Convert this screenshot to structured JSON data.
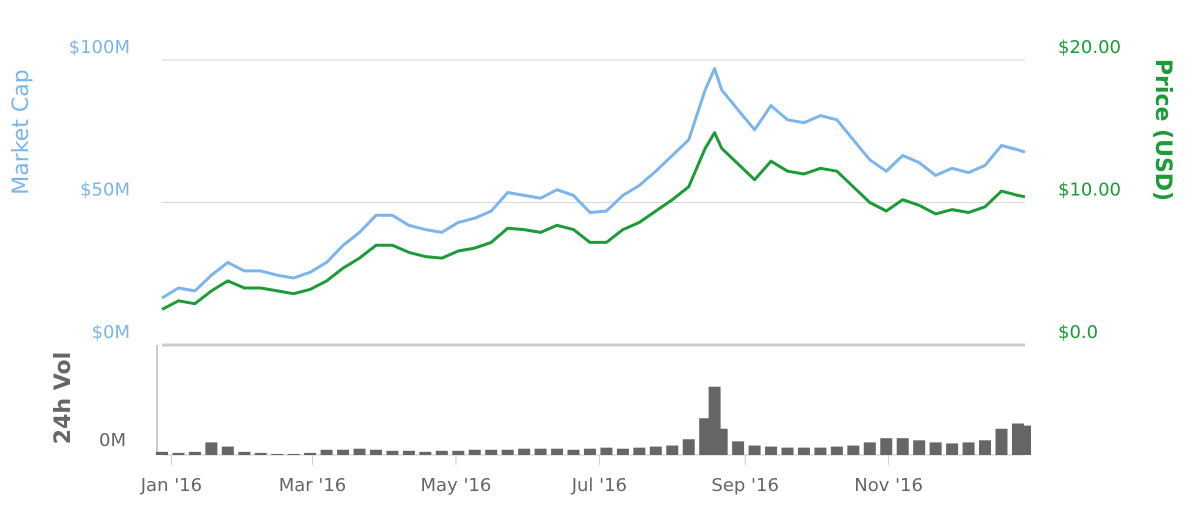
{
  "chart_data": {
    "type": "line",
    "x": [
      -4,
      3,
      10,
      17,
      24,
      31,
      38,
      45,
      52,
      59,
      66,
      73,
      80,
      87,
      94,
      101,
      108,
      115,
      122,
      129,
      136,
      143,
      150,
      157,
      164,
      171,
      178,
      185,
      192,
      199,
      206,
      213,
      220,
      227,
      231,
      234,
      241,
      248,
      255,
      262,
      269,
      276,
      283,
      290,
      297,
      304,
      311,
      318,
      325,
      332,
      339,
      346,
      353,
      360,
      363
    ],
    "xlim": [
      -4,
      363
    ],
    "xticks": [
      {
        "value": 0,
        "label": "Jan '16"
      },
      {
        "value": 60,
        "label": "Mar '16"
      },
      {
        "value": 121,
        "label": "May '16"
      },
      {
        "value": 182,
        "label": "Jul '16"
      },
      {
        "value": 244,
        "label": "Sep '16"
      },
      {
        "value": 305,
        "label": "Nov '16"
      }
    ],
    "ylabel": "Market Cap",
    "y2label": "Price (USD)",
    "y3label": "24h Vol",
    "ylim": [
      0,
      100
    ],
    "yticks": [
      {
        "value": 0,
        "label": "$0M"
      },
      {
        "value": 50,
        "label": "$50M"
      },
      {
        "value": 100,
        "label": "$100M"
      }
    ],
    "y2lim": [
      0,
      20
    ],
    "y2ticks": [
      {
        "value": 0,
        "label": "$0.0"
      },
      {
        "value": 10,
        "label": "$10.00"
      },
      {
        "value": 20,
        "label": "$20.00"
      }
    ],
    "y3lim": [
      0,
      10
    ],
    "y3ticks": [
      {
        "value": 0,
        "label": "0M"
      }
    ],
    "grid": true,
    "series": [
      {
        "name": "Market Cap",
        "color": "#7cb5ec",
        "values": [
          16.5,
          20,
          19,
          24.5,
          29,
          26,
          26,
          24.5,
          23.5,
          25.5,
          29,
          35,
          39.5,
          45.5,
          45.5,
          42,
          40.5,
          39.5,
          43,
          44.5,
          47,
          53.5,
          52.5,
          51.5,
          54.5,
          52.5,
          46.5,
          47,
          52.5,
          56,
          61,
          66.5,
          72,
          89.5,
          97,
          89.5,
          82.5,
          75.5,
          84,
          79,
          78,
          80.5,
          79,
          72,
          65,
          61,
          66.5,
          64,
          59.5,
          62,
          60.5,
          63,
          70,
          68.5,
          67.7
        ]
      },
      {
        "name": "Price (USD)",
        "color": "#1c9b38",
        "axis": "y2",
        "values": [
          2.5,
          3.1,
          2.9,
          3.8,
          4.5,
          4.0,
          4.0,
          3.8,
          3.6,
          3.9,
          4.5,
          5.4,
          6.1,
          7.0,
          7.0,
          6.5,
          6.2,
          6.1,
          6.6,
          6.8,
          7.2,
          8.2,
          8.1,
          7.9,
          8.4,
          8.1,
          7.2,
          7.2,
          8.1,
          8.6,
          9.4,
          10.2,
          11.1,
          13.8,
          14.9,
          13.8,
          12.7,
          11.6,
          12.9,
          12.2,
          12.0,
          12.4,
          12.2,
          11.1,
          10.0,
          9.4,
          10.2,
          9.8,
          9.2,
          9.5,
          9.3,
          9.7,
          10.8,
          10.5,
          10.4
        ]
      },
      {
        "name": "24h Vol",
        "color": "#666666",
        "axis": "y3",
        "values": [
          0.3,
          0.2,
          0.3,
          1.2,
          0.8,
          0.3,
          0.2,
          0.1,
          0.1,
          0.2,
          0.5,
          0.5,
          0.6,
          0.5,
          0.4,
          0.4,
          0.3,
          0.4,
          0.4,
          0.5,
          0.5,
          0.5,
          0.6,
          0.6,
          0.6,
          0.5,
          0.6,
          0.7,
          0.6,
          0.7,
          0.8,
          0.9,
          1.5,
          3.5,
          6.5,
          2.5,
          1.3,
          0.9,
          0.8,
          0.7,
          0.7,
          0.7,
          0.8,
          0.9,
          1.2,
          1.6,
          1.6,
          1.4,
          1.2,
          1.1,
          1.2,
          1.4,
          2.5,
          3.0,
          2.8
        ]
      }
    ]
  }
}
